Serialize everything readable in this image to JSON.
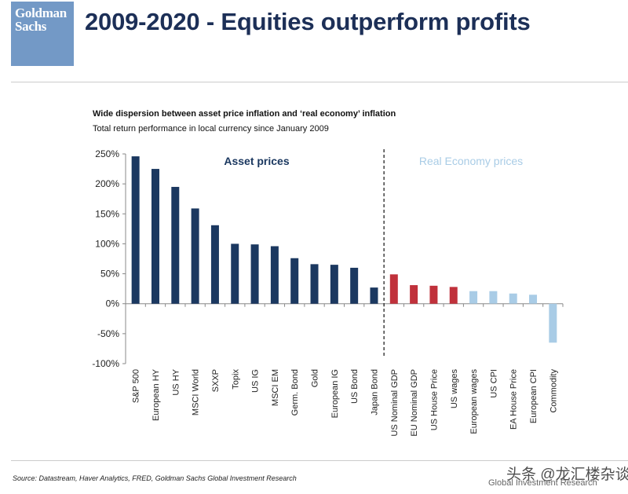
{
  "header": {
    "logo_line1": "Goldman",
    "logo_line2": "Sachs",
    "title": "2009-2020 - Equities outperform profits"
  },
  "chart_data": {
    "type": "bar",
    "title": "Wide dispersion between asset price inflation and ‘real economy’ inflation",
    "subtitle": "Total return performance in local currency since January 2009",
    "xlabel": "",
    "ylabel": "",
    "ylim": [
      -100,
      250
    ],
    "yticks": [
      250,
      200,
      150,
      100,
      50,
      0,
      -50,
      -100
    ],
    "ytick_labels": [
      "250%",
      "200%",
      "150%",
      "100%",
      "50%",
      "0%",
      "-50%",
      "-100%"
    ],
    "categories": [
      "S&P 500",
      "European HY",
      "US HY",
      "MSCI World",
      "SXXP",
      "Topix",
      "US IG",
      "MSCI EM",
      "Germ. Bond",
      "Gold",
      "European IG",
      "US Bond",
      "Japan Bond",
      "US Nominal GDP",
      "EU Nominal GDP",
      "US House Price",
      "US wages",
      "European wages",
      "US CPI",
      "EA House Price",
      "European CPI",
      "Commodity"
    ],
    "values": [
      246,
      225,
      195,
      159,
      131,
      100,
      99,
      96,
      76,
      66,
      65,
      60,
      27,
      49,
      31,
      30,
      28,
      21,
      21,
      17,
      15,
      -65
    ],
    "groups": [
      "asset",
      "asset",
      "asset",
      "asset",
      "asset",
      "asset",
      "asset",
      "asset",
      "asset",
      "asset",
      "asset",
      "asset",
      "asset",
      "gdp",
      "gdp",
      "gdp",
      "gdp",
      "real",
      "real",
      "real",
      "real",
      "real"
    ],
    "group_colors": {
      "asset": "#1b3860",
      "gdp": "#c0313b",
      "real": "#a9cce6"
    },
    "annotations": {
      "left": "Asset prices",
      "right": "Real Economy prices"
    },
    "annotation_colors": {
      "left": "#1b3860",
      "right": "#a9cce6"
    },
    "grid": false
  },
  "footer": {
    "source": "Source: Datastream, Haver Analytics, FRED, Goldman Sachs Global Investment Research",
    "watermark": "头条 @龙汇楼杂谈",
    "watermark_sub": "Global Investment Research"
  }
}
